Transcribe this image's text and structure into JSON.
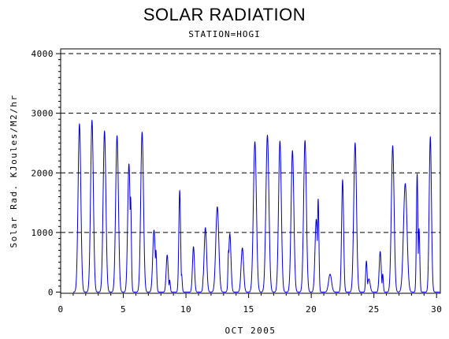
{
  "chart_data": {
    "type": "line",
    "title": "SOLAR RADIATION",
    "subtitle": "STATION=HOGI",
    "xlabel": "OCT 2005",
    "ylabel": "Solar Rad. KJoules/M2/hr",
    "xlim": [
      0,
      30.3
    ],
    "ylim": [
      -20,
      4080
    ],
    "x_ticks": [
      0,
      5,
      10,
      15,
      20,
      25,
      30
    ],
    "y_ticks": [
      0,
      1000,
      2000,
      3000,
      4000
    ],
    "grid": "horizontal dashed",
    "series": [
      {
        "color": "#0000cc",
        "daily_peaks": [
          {
            "day": 1,
            "peaks": [
              {
                "x": 1.5,
                "y": 2820,
                "w": 0.11
              }
            ]
          },
          {
            "day": 2,
            "peaks": [
              {
                "x": 2.5,
                "y": 2880,
                "w": 0.11
              }
            ]
          },
          {
            "day": 3,
            "peaks": [
              {
                "x": 3.5,
                "y": 2700,
                "w": 0.11
              },
              {
                "x": 3.6,
                "y": 1200,
                "w": 0.05
              }
            ]
          },
          {
            "day": 4,
            "peaks": [
              {
                "x": 4.5,
                "y": 2620,
                "w": 0.11
              }
            ]
          },
          {
            "day": 5,
            "peaks": [
              {
                "x": 5.45,
                "y": 2150,
                "w": 0.1
              },
              {
                "x": 5.58,
                "y": 1600,
                "w": 0.06
              }
            ]
          },
          {
            "day": 6,
            "peaks": [
              {
                "x": 6.5,
                "y": 2680,
                "w": 0.11
              }
            ]
          },
          {
            "day": 7,
            "peaks": [
              {
                "x": 7.45,
                "y": 1040,
                "w": 0.1
              },
              {
                "x": 7.6,
                "y": 700,
                "w": 0.06
              }
            ]
          },
          {
            "day": 8,
            "peaks": [
              {
                "x": 8.5,
                "y": 620,
                "w": 0.08
              },
              {
                "x": 8.7,
                "y": 200,
                "w": 0.05
              }
            ]
          },
          {
            "day": 9,
            "peaks": [
              {
                "x": 9.5,
                "y": 1700,
                "w": 0.07
              },
              {
                "x": 9.65,
                "y": 300,
                "w": 0.05
              }
            ]
          },
          {
            "day": 10,
            "peaks": [
              {
                "x": 10.6,
                "y": 760,
                "w": 0.08
              }
            ]
          },
          {
            "day": 11,
            "peaks": [
              {
                "x": 11.55,
                "y": 1080,
                "w": 0.1
              },
              {
                "x": 11.4,
                "y": 300,
                "w": 0.05
              }
            ]
          },
          {
            "day": 12,
            "peaks": [
              {
                "x": 12.5,
                "y": 1430,
                "w": 0.12
              }
            ]
          },
          {
            "day": 13,
            "peaks": [
              {
                "x": 13.5,
                "y": 980,
                "w": 0.09
              },
              {
                "x": 13.4,
                "y": 700,
                "w": 0.05
              }
            ]
          },
          {
            "day": 14,
            "peaks": [
              {
                "x": 14.5,
                "y": 740,
                "w": 0.1
              }
            ]
          },
          {
            "day": 15,
            "peaks": [
              {
                "x": 15.5,
                "y": 2520,
                "w": 0.12
              }
            ]
          },
          {
            "day": 16,
            "peaks": [
              {
                "x": 16.5,
                "y": 2630,
                "w": 0.12
              }
            ]
          },
          {
            "day": 17,
            "peaks": [
              {
                "x": 17.5,
                "y": 2530,
                "w": 0.11
              }
            ]
          },
          {
            "day": 18,
            "peaks": [
              {
                "x": 18.5,
                "y": 2370,
                "w": 0.11
              }
            ]
          },
          {
            "day": 19,
            "peaks": [
              {
                "x": 19.5,
                "y": 2540,
                "w": 0.11
              }
            ]
          },
          {
            "day": 20,
            "peaks": [
              {
                "x": 20.4,
                "y": 1220,
                "w": 0.1
              },
              {
                "x": 20.55,
                "y": 1560,
                "w": 0.06
              }
            ]
          },
          {
            "day": 21,
            "peaks": [
              {
                "x": 21.5,
                "y": 300,
                "w": 0.12
              }
            ]
          },
          {
            "day": 22,
            "peaks": [
              {
                "x": 22.5,
                "y": 1880,
                "w": 0.08
              }
            ]
          },
          {
            "day": 23,
            "peaks": [
              {
                "x": 23.5,
                "y": 2500,
                "w": 0.11
              }
            ]
          },
          {
            "day": 24,
            "peaks": [
              {
                "x": 24.4,
                "y": 520,
                "w": 0.06
              },
              {
                "x": 24.6,
                "y": 220,
                "w": 0.1
              }
            ]
          },
          {
            "day": 25,
            "peaks": [
              {
                "x": 25.5,
                "y": 680,
                "w": 0.08
              },
              {
                "x": 25.7,
                "y": 300,
                "w": 0.05
              }
            ]
          },
          {
            "day": 26,
            "peaks": [
              {
                "x": 26.5,
                "y": 2450,
                "w": 0.11
              }
            ]
          },
          {
            "day": 27,
            "peaks": [
              {
                "x": 27.5,
                "y": 1820,
                "w": 0.14
              }
            ]
          },
          {
            "day": 28,
            "peaks": [
              {
                "x": 28.45,
                "y": 1980,
                "w": 0.06
              },
              {
                "x": 28.6,
                "y": 1060,
                "w": 0.06
              }
            ]
          },
          {
            "day": 29,
            "peaks": [
              {
                "x": 29.5,
                "y": 2600,
                "w": 0.09
              }
            ]
          }
        ]
      }
    ]
  }
}
